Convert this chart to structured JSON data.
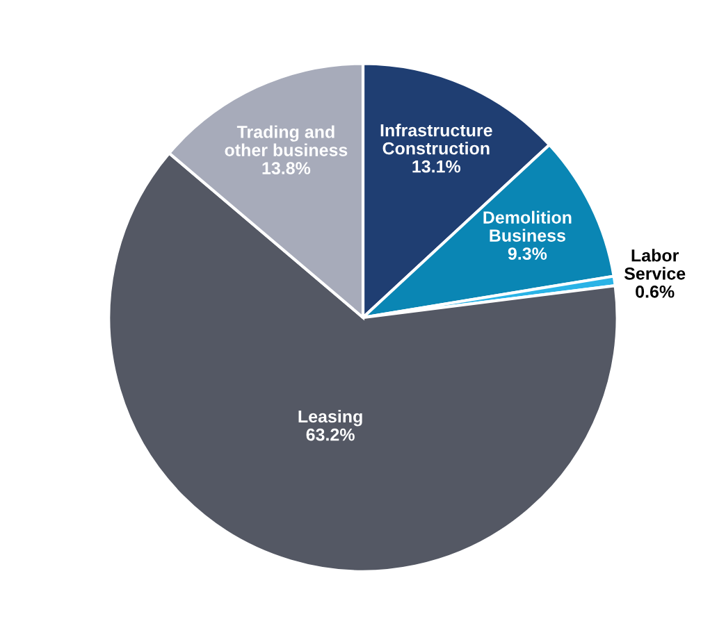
{
  "chart_data": {
    "type": "pie",
    "categories": [
      "Infrastructure\nConstruction",
      "Demolition\nBusiness",
      "Labor\nService",
      "Leasing",
      "Trading and\nother business"
    ],
    "values": [
      13.1,
      9.3,
      0.6,
      63.2,
      13.8
    ],
    "value_labels": [
      "13.1%",
      "9.3%",
      "0.6%",
      "63.2%",
      "13.8%"
    ],
    "colors": [
      "#1f3e72",
      "#0a86b4",
      "#2ab3e6",
      "#545864",
      "#a7abba"
    ],
    "legend": false
  }
}
